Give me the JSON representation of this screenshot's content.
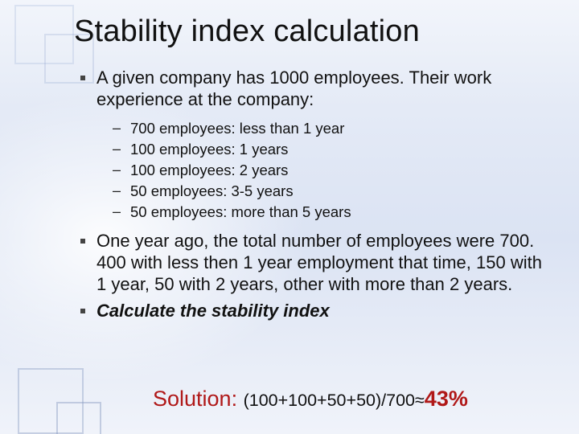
{
  "colors": {
    "title": "#111111",
    "body": "#111111",
    "accent_red": "#b01818",
    "bg_top": "#f2f5fb",
    "bg_mid": "#dbe3f3",
    "decor_border": "rgba(130,150,190,0.38)"
  },
  "typography": {
    "title_fontsize": 38,
    "body_fontsize": 22,
    "sub_fontsize": 18.5,
    "solution_label_fontsize": 27,
    "solution_expr_fontsize": 21.5,
    "font_family": "Arial"
  },
  "title": "Stability index calculation",
  "bullets": {
    "b0": "A given company has 1000 employees. Their work experience at the company:",
    "b1": "One year ago, the total number of employees were 700. 400 with less then 1 year employment that time, 150 with 1 year, 50 with 2 years, other with more than 2 years.",
    "b2": "Calculate the stability index"
  },
  "sub": {
    "s0": "700 employees: less than 1 year",
    "s1": "100 employees: 1 years",
    "s2": "100 employees: 2 years",
    "s3": "50 employees: 3-5 years",
    "s4": "50 employees: more than 5 years"
  },
  "solution": {
    "label": "Solution: ",
    "expr": "(100+100+50+50)/700≈",
    "result": "43%"
  }
}
